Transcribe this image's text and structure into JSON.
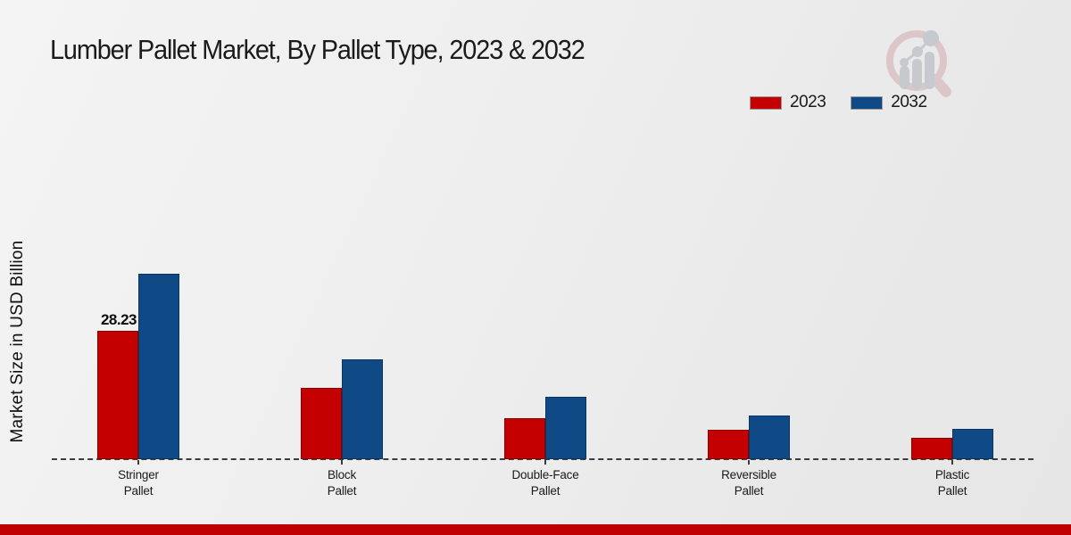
{
  "header": {
    "title": "Lumber Pallet Market, By Pallet Type, 2023 & 2032"
  },
  "branding": {
    "logo_icon": "magnifier-bar-chart-watermark",
    "footer_bar_color": "#c00000",
    "logo_ring_color": "#dcc3c6",
    "logo_bar_color": "#c3c6ca"
  },
  "chart_data": {
    "type": "bar",
    "title": "Lumber Pallet Market, By Pallet Type, 2023 & 2032",
    "ylabel": "Market Size in USD Billion",
    "xlabel": "",
    "categories": [
      "Stringer\nPallet",
      "Block\nPallet",
      "Double-Face\nPallet",
      "Reversible\nPallet",
      "Plastic\nPallet"
    ],
    "series": [
      {
        "name": "2023",
        "color": "#c40000",
        "values": [
          28.23,
          15.7,
          9.0,
          6.5,
          4.7
        ]
      },
      {
        "name": "2032",
        "color": "#0f4a87",
        "values": [
          40.8,
          22.0,
          13.7,
          9.6,
          6.7
        ]
      }
    ],
    "value_labels": [
      {
        "series_index": 0,
        "category_index": 0,
        "text": "28.23"
      }
    ],
    "ylim": [
      0,
      45
    ],
    "grid": false,
    "legend_position": "top-right",
    "baseline_style": "dashed",
    "axis_unit": "USD Billion"
  }
}
